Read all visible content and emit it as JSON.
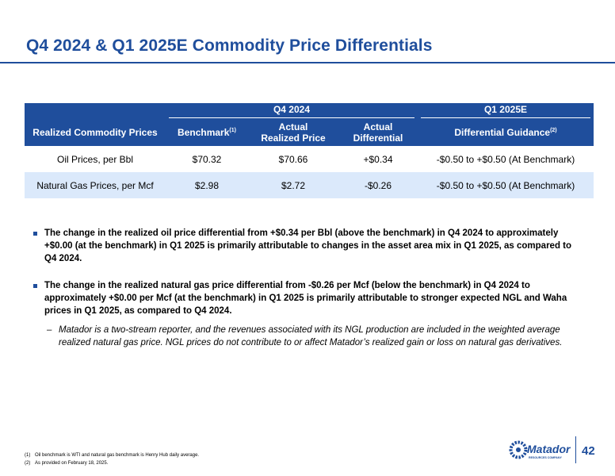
{
  "slide": {
    "title": "Q4 2024 & Q1 2025E Commodity Price Differentials",
    "page_number": "42"
  },
  "table": {
    "groups": {
      "q4": "Q4 2024",
      "q1": "Q1 2025E"
    },
    "headers": {
      "label": "Realized Commodity Prices",
      "benchmark": "Benchmark",
      "benchmark_note": "(1)",
      "actual_realized_line1": "Actual",
      "actual_realized_line2": "Realized Price",
      "actual_diff_line1": "Actual",
      "actual_diff_line2": "Differential",
      "guidance": "Differential Guidance",
      "guidance_note": "(2)"
    },
    "rows": [
      {
        "label": "Oil Prices, per Bbl",
        "benchmark": "$70.32",
        "actual": "$70.66",
        "differential": "+$0.34",
        "guidance": "-$0.50 to +$0.50 (At Benchmark)"
      },
      {
        "label": "Natural Gas Prices, per Mcf",
        "benchmark": "$2.98",
        "actual": "$2.72",
        "differential": "-$0.26",
        "guidance": "-$0.50 to +$0.50 (At Benchmark)"
      }
    ]
  },
  "bullets": {
    "oil": "The change in the realized oil price differential from +$0.34 per Bbl (above the benchmark) in Q4 2024 to approximately +$0.00 (at the benchmark) in Q1 2025 is primarily attributable to changes in the asset area mix in Q1 2025, as compared to Q4 2024.",
    "gas": "The change in the realized natural gas price differential from -$0.26 per Mcf (below the benchmark) in Q4 2024 to approximately +$0.00 per Mcf (at the benchmark) in Q1 2025 is primarily attributable to stronger expected NGL and Waha prices in Q1 2025, as compared to Q4 2024.",
    "gas_sub_mark": "–",
    "gas_sub": "Matador is a two-stream reporter, and the revenues associated with its NGL production are included in the weighted average realized natural gas price. NGL prices do not contribute to or affect Matador’s realized gain or loss on natural gas derivatives."
  },
  "footnotes": [
    {
      "num": "(1)",
      "text": "Oil benchmark is WTI and natural gas benchmark is Henry Hub daily average."
    },
    {
      "num": "(2)",
      "text": "As provided on February 18, 2025."
    }
  ],
  "logo": {
    "name": "Matador",
    "tagline": "RESOURCES COMPANY",
    "color": "#1f4e9c"
  },
  "colors": {
    "brand_blue": "#1f4e9c",
    "row_highlight": "#dbe9fb"
  }
}
